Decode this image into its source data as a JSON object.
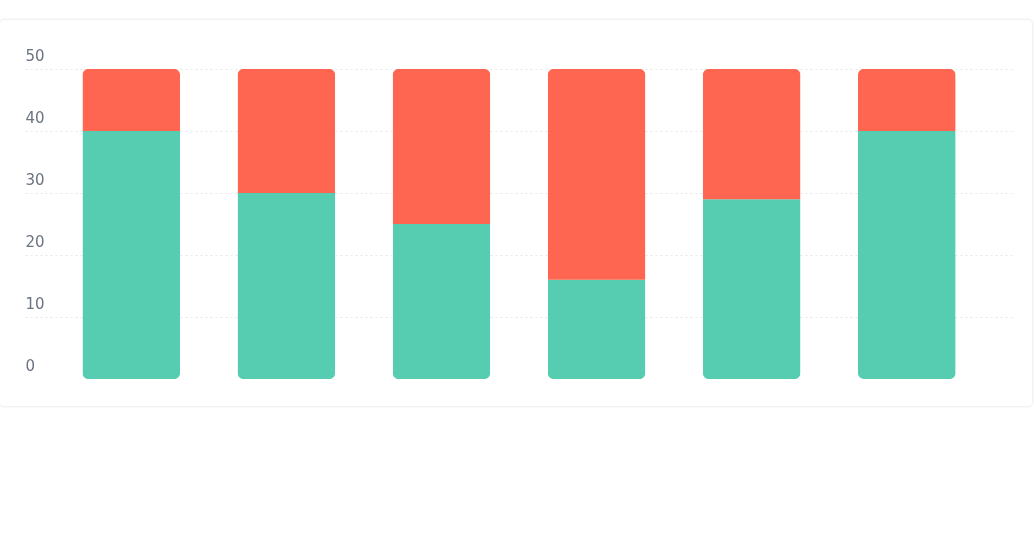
{
  "chart_data": {
    "type": "bar",
    "stacked": true,
    "categories": [
      null,
      null,
      null,
      null,
      null,
      null
    ],
    "series": [
      {
        "color": "#56cdb0",
        "values": [
          40,
          30,
          25,
          16,
          29,
          40
        ]
      },
      {
        "color": "#ff6651",
        "values": [
          10,
          20,
          25,
          34,
          21,
          10
        ]
      }
    ],
    "ylim": [
      0,
      50
    ],
    "yticks": [
      0,
      10,
      20,
      30,
      40,
      50
    ],
    "grid": "y",
    "tick_labels": "y"
  }
}
